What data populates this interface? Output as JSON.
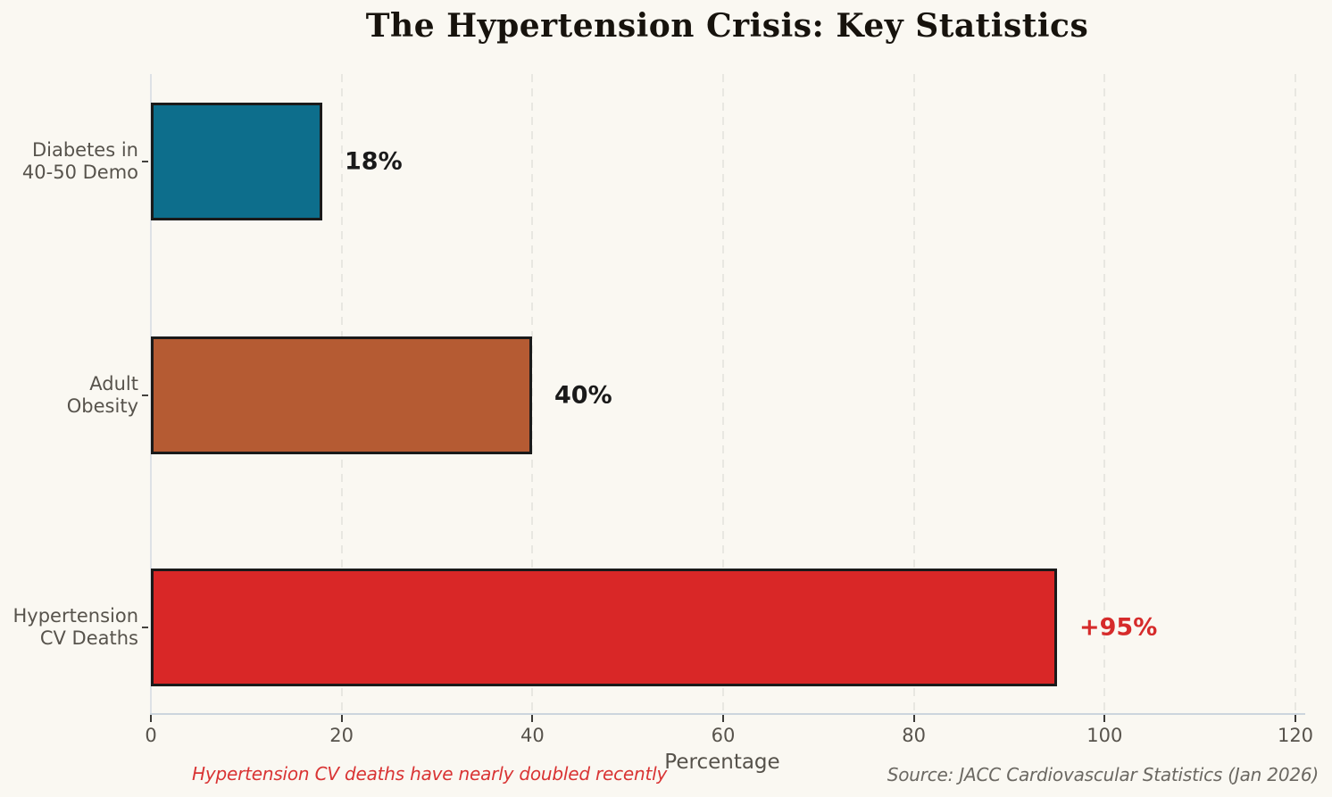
{
  "title": "The Hypertension Crisis: Key Statistics",
  "chart_data": {
    "type": "bar",
    "orientation": "horizontal",
    "title": "The Hypertension Crisis: Key Statistics",
    "categories": [
      [
        "Diabetes in",
        "40-50 Demo"
      ],
      [
        "Adult",
        "Obesity"
      ],
      [
        "Hypertension",
        "CV Deaths"
      ]
    ],
    "values": [
      18,
      40,
      95
    ],
    "value_labels": [
      "18%",
      "40%",
      "+95%"
    ],
    "bar_colors": [
      "#0d6e8c",
      "#b55b33",
      "#d92727"
    ],
    "value_label_colors": [
      "#1a1a1a",
      "#1a1a1a",
      "#d62b2b"
    ],
    "xlabel": "Percentage",
    "xticks": [
      0,
      20,
      40,
      60,
      80,
      100,
      120
    ],
    "xlim": [
      0,
      121
    ],
    "grid": "vertical-dashed",
    "legend": "none"
  },
  "footnote": {
    "text": "Hypertension CV deaths have nearly doubled recently",
    "color": "#d93434"
  },
  "source": {
    "text": "Source: JACC Cardiovascular Statistics (Jan 2026)",
    "color": "#6b6862"
  },
  "colors": {
    "background": "#faf8f2",
    "bar_edge": "#1a1a1a",
    "gridline": "#e8e7e1",
    "axis_spine": "#ccd5dd",
    "tick_mark": "#3c3a36",
    "tick_label": "#57534c"
  }
}
